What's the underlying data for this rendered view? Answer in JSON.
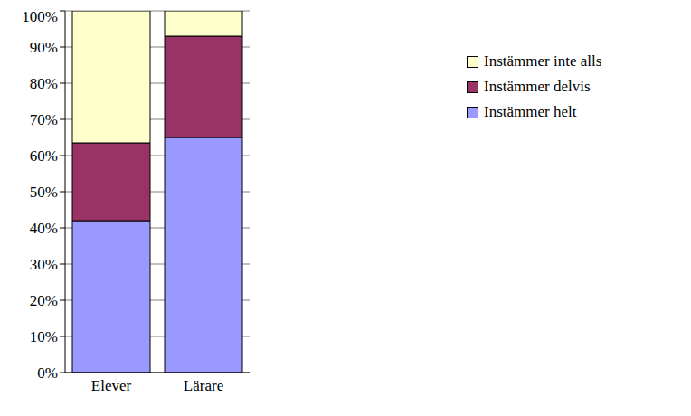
{
  "chart_data": {
    "type": "bar",
    "stacked": true,
    "categories": [
      "Elever",
      "Lärare"
    ],
    "series": [
      {
        "name": "Instämmer helt",
        "color": "#9999ff",
        "values": [
          42,
          65
        ]
      },
      {
        "name": "Instämmer delvis",
        "color": "#993366",
        "values": [
          21.5,
          28
        ]
      },
      {
        "name": "Instämmer inte alls",
        "color": "#ffffcc",
        "values": [
          36.5,
          7
        ]
      }
    ],
    "ylim": [
      0,
      100
    ],
    "yticks": [
      {
        "value": 0,
        "label": "0%"
      },
      {
        "value": 10,
        "label": "10%"
      },
      {
        "value": 20,
        "label": "20%"
      },
      {
        "value": 30,
        "label": "30%"
      },
      {
        "value": 40,
        "label": "40%"
      },
      {
        "value": 50,
        "label": "50%"
      },
      {
        "value": 60,
        "label": "60%"
      },
      {
        "value": 70,
        "label": "70%"
      },
      {
        "value": 80,
        "label": "80%"
      },
      {
        "value": 90,
        "label": "90%"
      },
      {
        "value": 100,
        "label": "100%"
      }
    ],
    "grid": true,
    "legend": "right"
  }
}
